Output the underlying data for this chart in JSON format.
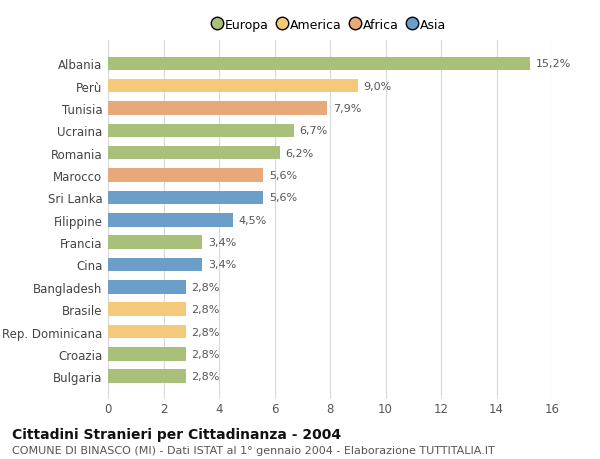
{
  "categories": [
    "Bulgaria",
    "Croazia",
    "Rep. Dominicana",
    "Brasile",
    "Bangladesh",
    "Cina",
    "Francia",
    "Filippine",
    "Sri Lanka",
    "Marocco",
    "Romania",
    "Ucraina",
    "Tunisia",
    "Perù",
    "Albania"
  ],
  "values": [
    2.8,
    2.8,
    2.8,
    2.8,
    2.8,
    3.4,
    3.4,
    4.5,
    5.6,
    5.6,
    6.2,
    6.7,
    7.9,
    9.0,
    15.2
  ],
  "colors": [
    "#a8c07a",
    "#a8c07a",
    "#f5c97a",
    "#f5c97a",
    "#6b9ec8",
    "#6b9ec8",
    "#a8c07a",
    "#6b9ec8",
    "#6b9ec8",
    "#e8a97a",
    "#a8c07a",
    "#a8c07a",
    "#e8a97a",
    "#f5c97a",
    "#a8c07a"
  ],
  "labels": [
    "2,8%",
    "2,8%",
    "2,8%",
    "2,8%",
    "2,8%",
    "3,4%",
    "3,4%",
    "4,5%",
    "5,6%",
    "5,6%",
    "6,2%",
    "6,7%",
    "7,9%",
    "9,0%",
    "15,2%"
  ],
  "xlim": [
    0,
    16
  ],
  "xticks": [
    0,
    2,
    4,
    6,
    8,
    10,
    12,
    14,
    16
  ],
  "title": "Cittadini Stranieri per Cittadinanza - 2004",
  "subtitle": "COMUNE DI BINASCO (MI) - Dati ISTAT al 1° gennaio 2004 - Elaborazione TUTTITALIA.IT",
  "legend_labels": [
    "Europa",
    "America",
    "Africa",
    "Asia"
  ],
  "legend_colors": [
    "#a8c07a",
    "#f5c97a",
    "#e8a97a",
    "#6b9ec8"
  ],
  "bg_color": "#ffffff",
  "bar_height": 0.6,
  "grid_color": "#d8d8d8",
  "title_fontsize": 10,
  "subtitle_fontsize": 8,
  "label_fontsize": 8,
  "tick_fontsize": 8.5,
  "legend_fontsize": 9
}
